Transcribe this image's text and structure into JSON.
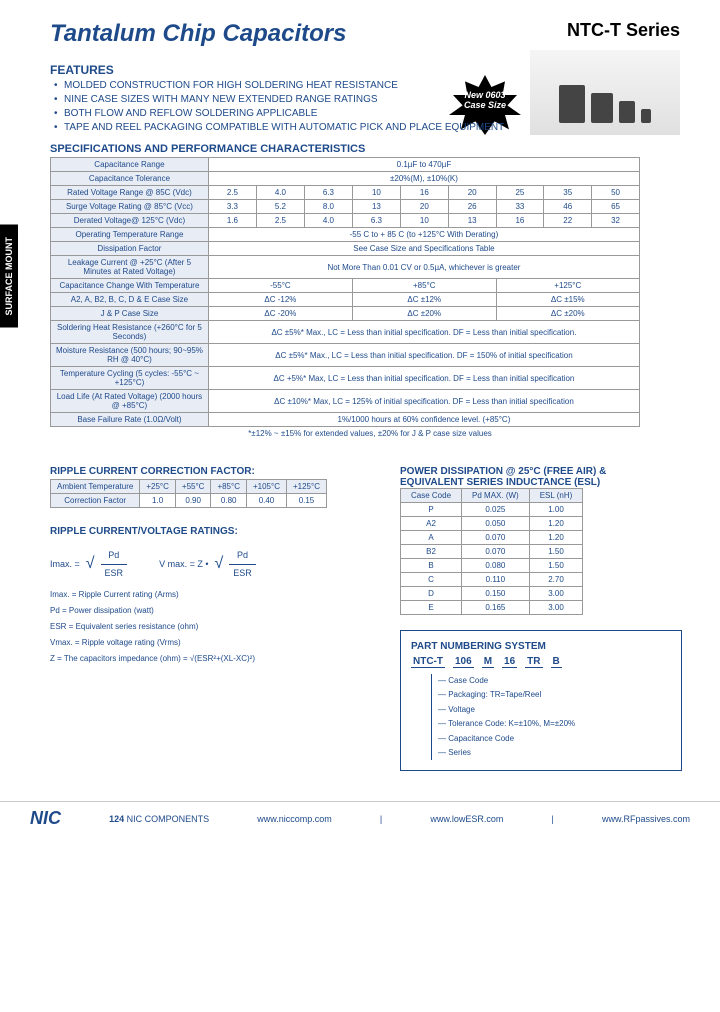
{
  "header": {
    "title": "Tantalum Chip Capacitors",
    "series": "NTC-T Series"
  },
  "sideTab": "SURFACE MOUNT",
  "featuresHeading": "FEATURES",
  "features": [
    "MOLDED CONSTRUCTION FOR HIGH SOLDERING HEAT RESISTANCE",
    "NINE CASE SIZES WITH MANY NEW EXTENDED RANGE RATINGS",
    "BOTH FLOW AND REFLOW SOLDERING APPLICABLE",
    "TAPE AND REEL PACKAGING COMPATIBLE WITH AUTOMATIC PICK AND PLACE EQUIPMENT"
  ],
  "starburst": "New 0603 Case Size",
  "specHeading": "SPECIFICATIONS AND PERFORMANCE CHARACTERISTICS",
  "specTable": {
    "rows": [
      {
        "label": "Capacitance Range",
        "full": "0.1µF to 470µF"
      },
      {
        "label": "Capacitance Tolerance",
        "full": "±20%(M), ±10%(K)"
      },
      {
        "label": "Rated Voltage Range @ 85C (Vdc)",
        "cells": [
          "2.5",
          "4.0",
          "6.3",
          "10",
          "16",
          "20",
          "25",
          "35",
          "50"
        ]
      },
      {
        "label": "Surge Voltage Rating @ 85°C (Vcc)",
        "cells": [
          "3.3",
          "5.2",
          "8.0",
          "13",
          "20",
          "26",
          "33",
          "46",
          "65"
        ]
      },
      {
        "label": "Derated Voltage@ 125°C (Vdc)",
        "cells": [
          "1.6",
          "2.5",
          "4.0",
          "6.3",
          "10",
          "13",
          "16",
          "22",
          "32"
        ]
      },
      {
        "label": "Operating Temperature Range",
        "full": "-55 C to + 85 C (to +125°C With Derating)"
      },
      {
        "label": "Dissipation Factor",
        "full": "See Case Size and Specifications Table"
      },
      {
        "label": "Leakage Current @ +25°C (After 5 Minutes at Rated Voltage)",
        "full": "Not More Than 0.01 CV or 0.5µA, whichever is greater"
      }
    ],
    "tempHeader": {
      "label": "Capacitance Change With Temperature",
      "cols": [
        "-55°C",
        "+85°C",
        "+125°C"
      ]
    },
    "tempRows": [
      {
        "label": "A2, A, B2, B, C, D & E Case Size",
        "cells": [
          "ΔC -12%",
          "ΔC ±12%",
          "ΔC ±15%"
        ]
      },
      {
        "label": "J & P Case Size",
        "cells": [
          "ΔC -20%",
          "ΔC ±20%",
          "ΔC ±20%"
        ]
      }
    ],
    "bottomRows": [
      {
        "label": "Soldering Heat Resistance (+260°C for 5 Seconds)",
        "full": "ΔC ±5%* Max., LC = Less than initial specification. DF = Less than initial specification."
      },
      {
        "label": "Moisture Resistance (500 hours; 90~95% RH @ 40°C)",
        "full": "ΔC ±5%* Max., LC = Less than initial specification. DF = 150% of initial specification"
      },
      {
        "label": "Temperature Cycling (5 cycles: -55°C ~ +125°C)",
        "full": "ΔC +5%* Max, LC = Less than initial specification. DF = Less than initial specification"
      },
      {
        "label": "Load Life (At Rated Voltage) (2000 hours @ +85°C)",
        "full": "ΔC ±10%* Max, LC = 125% of initial specification. DF = Less than initial specification"
      },
      {
        "label": "Base Failure Rate (1.0Ω/Volt)",
        "full": "1%/1000 hours at 60% confidence level. (+85°C)"
      }
    ],
    "footnote": "*±12% ~ ±15% for extended values, ±20% for J & P case size values"
  },
  "ripple": {
    "heading": "RIPPLE CURRENT CORRECTION FACTOR:",
    "headers": [
      "Ambient Temperature",
      "+25°C",
      "+55°C",
      "+85°C",
      "+105°C",
      "+125°C"
    ],
    "row": [
      "Correction Factor",
      "1.0",
      "0.90",
      "0.80",
      "0.40",
      "0.15"
    ]
  },
  "ratings": {
    "heading": "RIPPLE CURRENT/VOLTAGE RATINGS:",
    "f1": {
      "lhs": "Imax. =",
      "num": "Pd",
      "den": "ESR"
    },
    "f2": {
      "lhs": "V max. = Z •",
      "num": "Pd",
      "den": "ESR"
    },
    "defs": [
      "Imax. = Ripple Current rating (Arms)",
      "Pd = Power dissipation (watt)",
      "ESR = Equivalent series resistance (ohm)",
      "Vmax. = Ripple voltage rating (Vrms)",
      "Z = The capacitors impedance (ohm) = √(ESR²+(XL-XC)²)"
    ]
  },
  "esl": {
    "heading": "POWER DISSIPATION @ 25°C (FREE AIR) & EQUIVALENT SERIES INDUCTANCE (ESL)",
    "headers": [
      "Case Code",
      "Pd MAX. (W)",
      "ESL (nH)"
    ],
    "rows": [
      [
        "P",
        "0.025",
        "1.00"
      ],
      [
        "A2",
        "0.050",
        "1.20"
      ],
      [
        "A",
        "0.070",
        "1.20"
      ],
      [
        "B2",
        "0.070",
        "1.50"
      ],
      [
        "B",
        "0.080",
        "1.50"
      ],
      [
        "C",
        "0.110",
        "2.70"
      ],
      [
        "D",
        "0.150",
        "3.00"
      ],
      [
        "E",
        "0.165",
        "3.00"
      ]
    ]
  },
  "part": {
    "heading": "PART NUMBERING SYSTEM",
    "example": [
      "NTC-T",
      "106",
      "M",
      "16",
      "TR",
      "B"
    ],
    "lines": [
      "— Case Code",
      "— Packaging: TR=Tape/Reel",
      "— Voltage",
      "— Tolerance Code: K=±10%, M=±20%",
      "— Capacitance Code",
      "— Series"
    ]
  },
  "footer": {
    "page": "124",
    "company": "NIC COMPONENTS",
    "urls": [
      "www.niccomp.com",
      "www.lowESR.com",
      "www.RFpassives.com"
    ]
  },
  "colors": {
    "brand": "#1e4a8a",
    "tableBg": "#e8ecf5"
  }
}
